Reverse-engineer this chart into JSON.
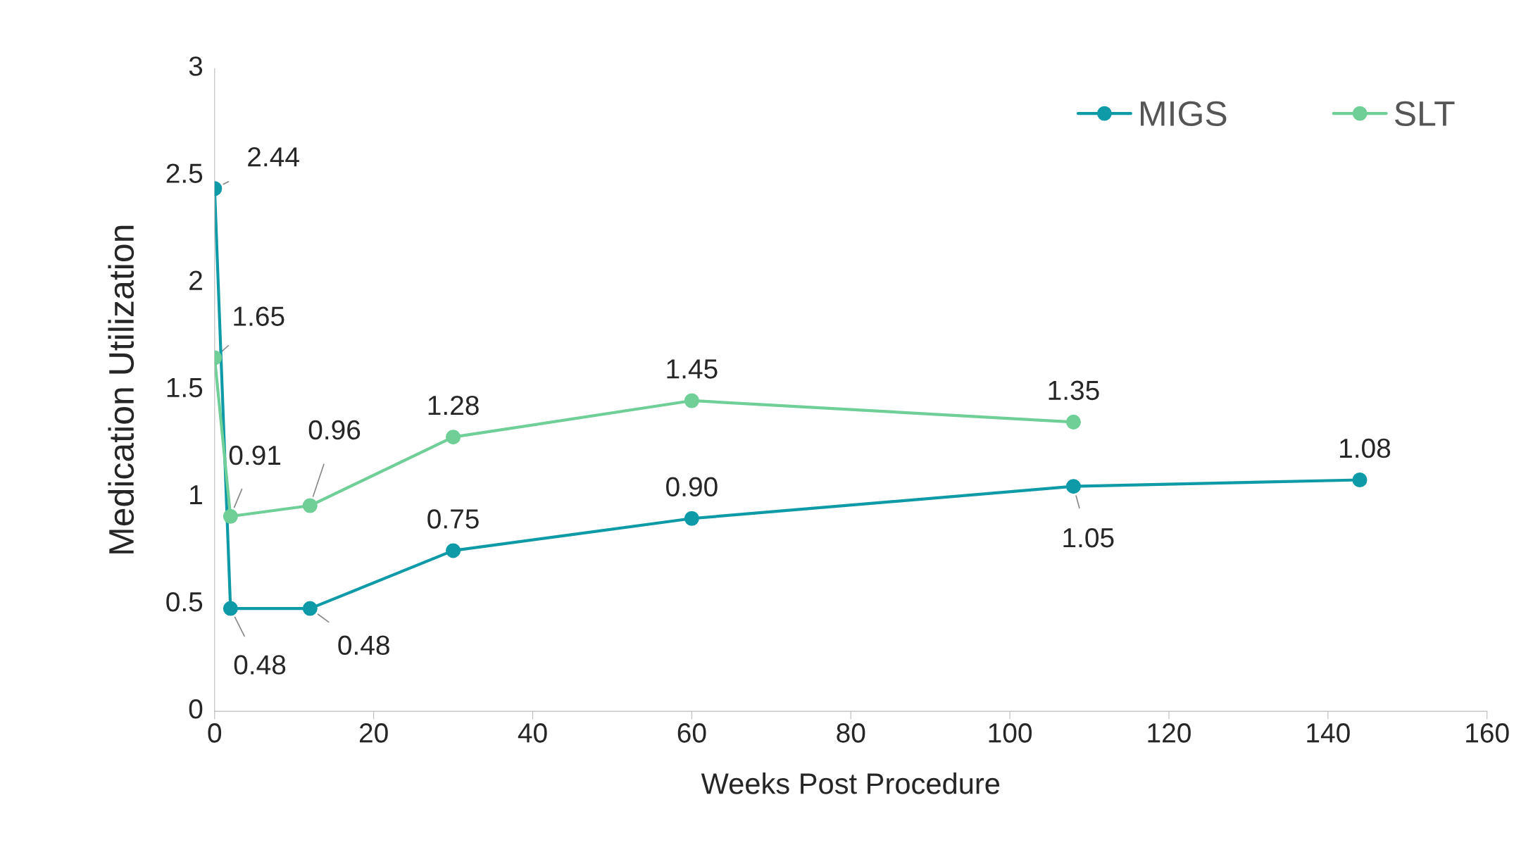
{
  "chart_data": {
    "type": "line",
    "xlabel": "Weeks Post Procedure",
    "ylabel": "Medication Utilization",
    "xlim": [
      0,
      160
    ],
    "xticks": [
      0,
      20,
      40,
      60,
      80,
      100,
      120,
      140,
      160
    ],
    "ylim": [
      0,
      3
    ],
    "yticks": [
      0,
      {
        "value": 0.5,
        "label": "0.5"
      },
      1,
      {
        "value": 1.5,
        "label": "1.5"
      },
      2,
      {
        "value": 2.5,
        "label": "2.5"
      },
      3
    ],
    "grid": false,
    "legend": "top right",
    "marker": "circle",
    "line_style": "solid",
    "series": [
      {
        "name": "MIGS",
        "color": "#0e9aa7",
        "x": [
          0,
          2,
          12,
          30,
          60,
          108,
          144
        ],
        "values": [
          2.44,
          0.48,
          0.48,
          0.75,
          0.9,
          1.05,
          1.08
        ],
        "value_labels": [
          "2.44",
          "0.48",
          "0.48",
          "0.75",
          "0.90",
          "1.05",
          "1.08"
        ]
      },
      {
        "name": "SLT",
        "color": "#6fcf97",
        "x": [
          0,
          2,
          12,
          30,
          60,
          108
        ],
        "values": [
          1.65,
          0.91,
          0.96,
          1.28,
          1.45,
          1.35
        ],
        "value_labels": [
          "1.65",
          "0.91",
          "0.96",
          "1.28",
          "1.45",
          "1.35"
        ]
      }
    ]
  }
}
